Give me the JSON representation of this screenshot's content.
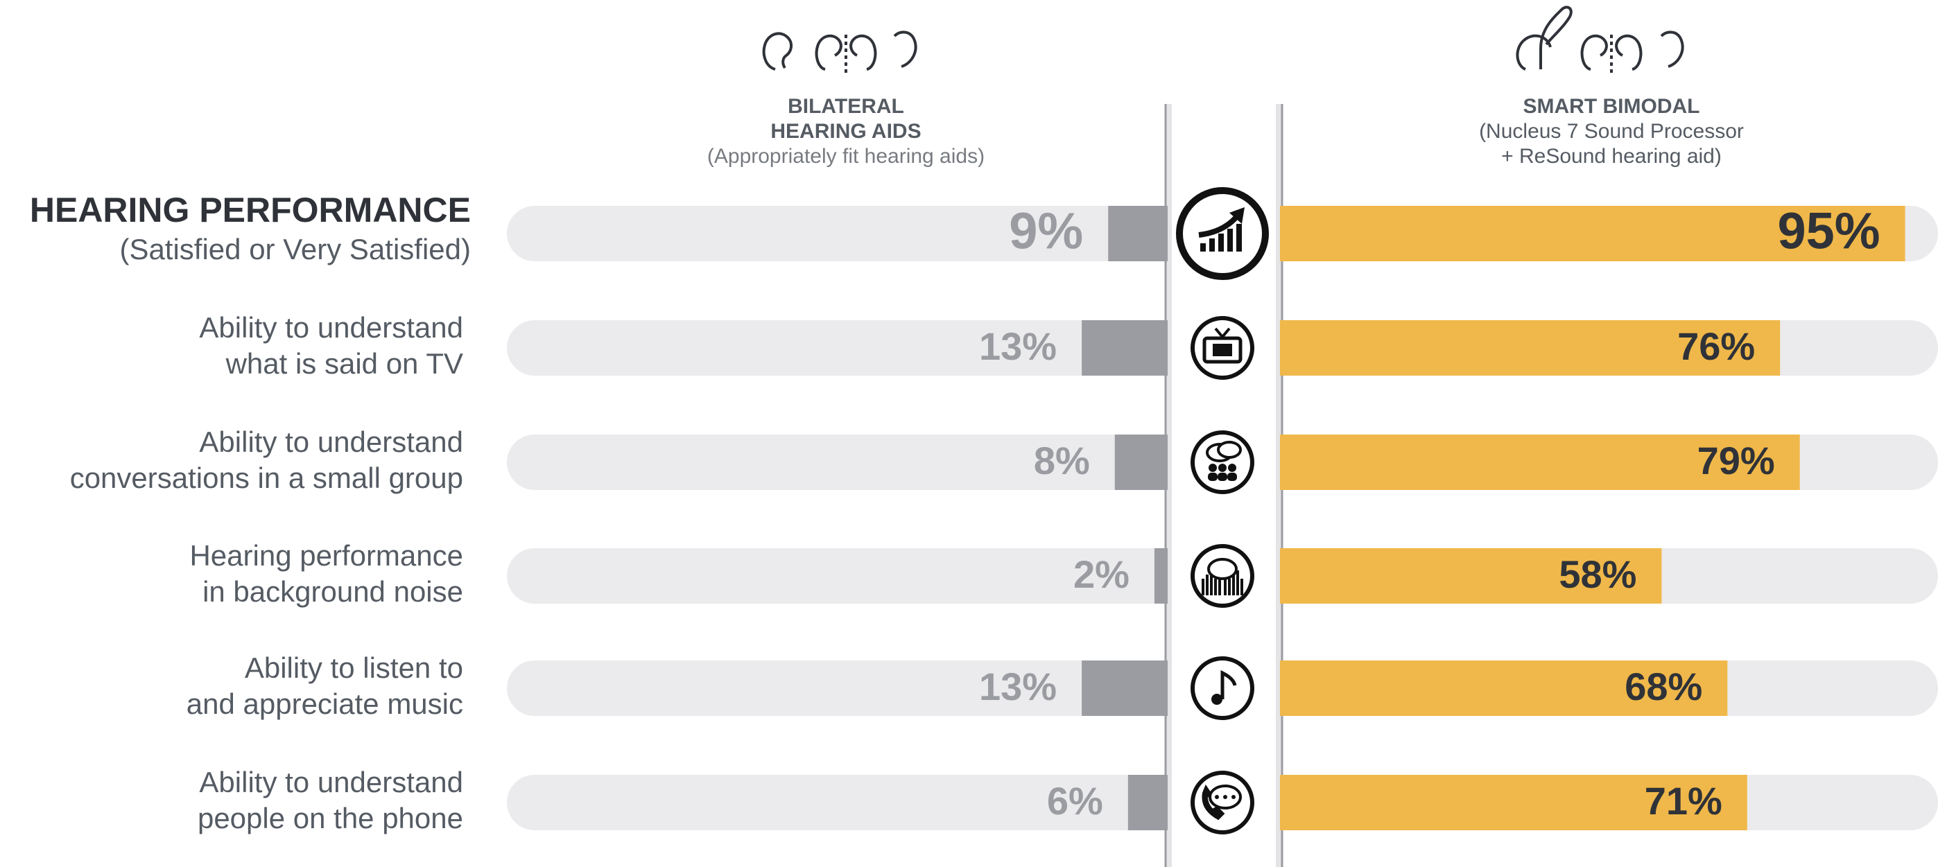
{
  "chart_data": {
    "type": "butterfly-bar",
    "categories": [
      [
        "HEARING PERFORMANCE",
        "(Satisfied or Very Satisfied)"
      ],
      [
        "Ability to understand",
        "what is said on TV"
      ],
      [
        "Ability to understand",
        "conversations in a small group"
      ],
      [
        "Hearing performance",
        "in background noise"
      ],
      [
        "Ability to listen to",
        "and appreciate music"
      ],
      [
        "Ability to understand",
        "people on the phone"
      ]
    ],
    "series": [
      {
        "name": "BILATERAL HEARING AIDS",
        "note": [
          "(Appropriately fit hearing aids)"
        ],
        "color": "#9b9ca2",
        "label_color": "#9a9ca1",
        "values": [
          9,
          13,
          8,
          2,
          13,
          6
        ],
        "value_labels": [
          "9%",
          "13%",
          "8%",
          "2%",
          "13%",
          "6%"
        ]
      },
      {
        "name": "SMART BIMODAL",
        "note": [
          "(Nucleus 7 Sound Processor",
          "+ ReSound hearing aid)"
        ],
        "color": "#f0b84a",
        "label_color": "#2f3238",
        "values": [
          95,
          76,
          79,
          58,
          68,
          71
        ],
        "value_labels": [
          "95%",
          "76%",
          "79%",
          "58%",
          "68%",
          "71%"
        ]
      }
    ],
    "xlim": [
      0,
      100
    ],
    "track_color": "#ebebed"
  }
}
